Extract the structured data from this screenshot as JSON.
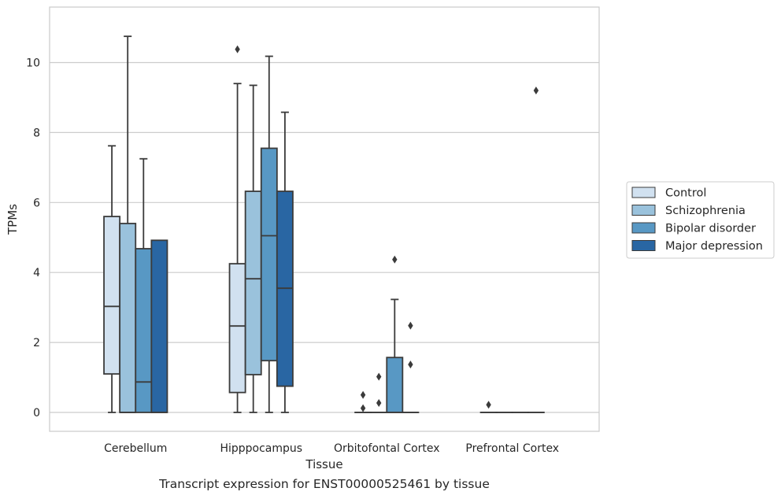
{
  "chart_data": {
    "type": "boxplot",
    "caption": "Transcript expression for ENST00000525461 by tissue",
    "xlabel": "Tissue",
    "ylabel": "TPMs",
    "ylim": [
      -0.5,
      11.6
    ],
    "yticks": [
      0,
      2,
      4,
      6,
      8,
      10
    ],
    "grid": true,
    "legend_position": "right",
    "categories": [
      "Cerebellum",
      "Hipppocampus",
      "Orbitofontal Cortex",
      "Prefrontal Cortex"
    ],
    "series": [
      {
        "name": "Control",
        "color": "#d1e1f0",
        "boxes": [
          {
            "whisker_low": 0,
            "q1": 1.1,
            "median": 3.03,
            "q3": 5.6,
            "whisker_high": 7.62,
            "outliers": []
          },
          {
            "whisker_low": 0,
            "q1": 0.57,
            "median": 2.47,
            "q3": 4.25,
            "whisker_high": 9.4,
            "outliers": [
              10.38
            ]
          },
          {
            "whisker_low": 0,
            "q1": 0,
            "median": 0,
            "q3": 0,
            "whisker_high": 0,
            "outliers": [
              0.12,
              0.5
            ]
          },
          {
            "whisker_low": 0,
            "q1": 0,
            "median": 0,
            "q3": 0,
            "whisker_high": 0,
            "outliers": [
              0.22
            ]
          }
        ]
      },
      {
        "name": "Schizophrenia",
        "color": "#9ac2dc",
        "boxes": [
          {
            "whisker_low": 0,
            "q1": 0,
            "median": 0,
            "q3": 5.4,
            "whisker_high": 10.75,
            "outliers": []
          },
          {
            "whisker_low": 0,
            "q1": 1.08,
            "median": 3.82,
            "q3": 6.32,
            "whisker_high": 9.35,
            "outliers": []
          },
          {
            "whisker_low": 0,
            "q1": 0,
            "median": 0,
            "q3": 0,
            "whisker_high": 0,
            "outliers": [
              0.27,
              1.02
            ]
          },
          {
            "whisker_low": 0,
            "q1": 0,
            "median": 0,
            "q3": 0,
            "whisker_high": 0,
            "outliers": []
          }
        ]
      },
      {
        "name": "Bipolar disorder",
        "color": "#5898c4",
        "boxes": [
          {
            "whisker_low": 0,
            "q1": 0,
            "median": 0.87,
            "q3": 4.68,
            "whisker_high": 7.25,
            "outliers": []
          },
          {
            "whisker_low": 0,
            "q1": 1.48,
            "median": 5.05,
            "q3": 7.55,
            "whisker_high": 10.18,
            "outliers": []
          },
          {
            "whisker_low": 0,
            "q1": 0,
            "median": 0,
            "q3": 1.57,
            "whisker_high": 3.23,
            "outliers": [
              4.37
            ]
          },
          {
            "whisker_low": 0,
            "q1": 0,
            "median": 0,
            "q3": 0,
            "whisker_high": 0,
            "outliers": []
          }
        ]
      },
      {
        "name": "Major depression",
        "color": "#2966a3",
        "boxes": [
          {
            "whisker_low": 0,
            "q1": 0,
            "median": 0,
            "q3": 4.92,
            "whisker_high": 4.92,
            "outliers": []
          },
          {
            "whisker_low": 0,
            "q1": 0.75,
            "median": 3.55,
            "q3": 6.32,
            "whisker_high": 8.58,
            "outliers": []
          },
          {
            "whisker_low": 0,
            "q1": 0,
            "median": 0,
            "q3": 0,
            "whisker_high": 0,
            "outliers": [
              1.37,
              2.48
            ]
          },
          {
            "whisker_low": 0,
            "q1": 0,
            "median": 0,
            "q3": 0,
            "whisker_high": 0,
            "outliers": [
              9.2
            ]
          }
        ]
      }
    ]
  }
}
